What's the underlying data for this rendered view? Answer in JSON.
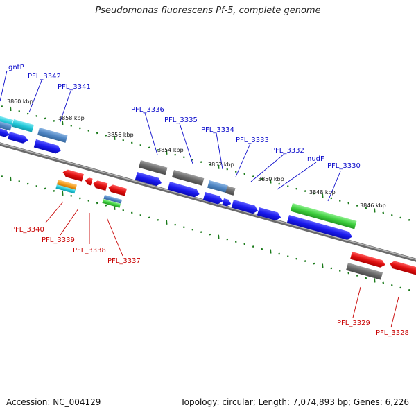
{
  "title": "Pseudomonas fluorescens Pf-5, complete genome",
  "accession": "Accession: NC_004129",
  "summary": "Topology: circular; Length: 7,074,893 bp; Genes: 6,226",
  "colors": {
    "forward_cds": "#1a1aee",
    "reverse_cds": "#e01010",
    "gray_track": "#707070",
    "steel_blue": "#4f86c4",
    "cyan": "#22c8d8",
    "green": "#3fcf3f",
    "orange": "#f29a1a",
    "tick_green": "#1a7a1a",
    "backbone": "#8a8a8a"
  },
  "scale_labels": [
    "3860 kbp",
    "3858 kbp",
    "3856 kbp",
    "3854 kbp",
    "3852 kbp",
    "3850 kbp",
    "3848 kbp",
    "3846 kbp"
  ],
  "top_labels": [
    "gntP",
    "PFL_3342",
    "PFL_3341",
    "PFL_3336",
    "PFL_3335",
    "PFL_3334",
    "PFL_3333",
    "PFL_3332",
    "nudF",
    "PFL_3330"
  ],
  "bottom_labels": [
    "PFL_3340",
    "PFL_3339",
    "PFL_3338",
    "PFL_3337",
    "PFL_3329",
    "PFL_3328"
  ]
}
